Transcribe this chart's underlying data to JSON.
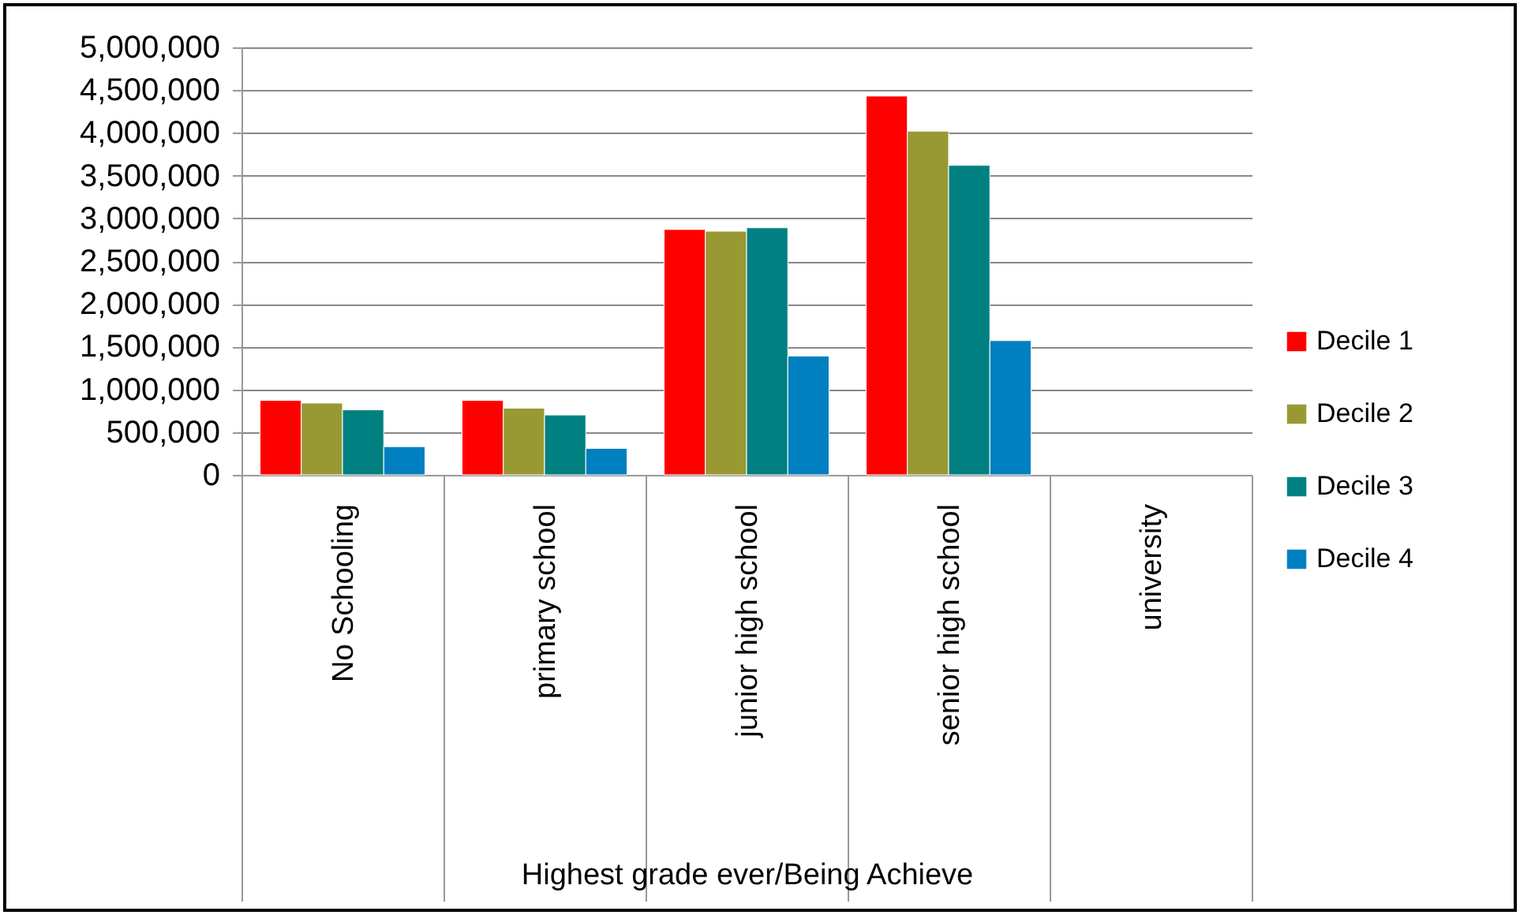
{
  "chart_data": {
    "type": "bar",
    "xlabel": "Highest grade ever/Being Achieve",
    "categories": [
      "No Schooling",
      "primary school",
      "junior high school",
      "senior high school",
      "university"
    ],
    "series": [
      {
        "name": "Decile 1",
        "color": "#ff0000",
        "values": [
          870000,
          870000,
          2870000,
          4430000,
          null
        ]
      },
      {
        "name": "Decile 2",
        "color": "#999933",
        "values": [
          840000,
          780000,
          2850000,
          4020000,
          null
        ]
      },
      {
        "name": "Decile 3",
        "color": "#008080",
        "values": [
          760000,
          700000,
          2890000,
          3620000,
          null
        ]
      },
      {
        "name": "Decile 4",
        "color": "#0080c0",
        "values": [
          330000,
          310000,
          1390000,
          1570000,
          null
        ]
      }
    ],
    "ylim": [
      0,
      5000000
    ],
    "yticks": [
      0,
      {
        "value": 500000,
        "label": "500,000"
      },
      {
        "value": 1000000,
        "label": "1,000,000"
      },
      {
        "value": 1500000,
        "label": "1,500,000"
      },
      {
        "value": 2000000,
        "label": "2,000,000"
      },
      {
        "value": 2500000,
        "label": "2,500,000"
      },
      {
        "value": 3000000,
        "label": "3,000,000"
      },
      {
        "value": 3500000,
        "label": "3,500,000"
      },
      {
        "value": 4000000,
        "label": "4,000,000"
      },
      {
        "value": 4500000,
        "label": "4,500,000"
      },
      {
        "value": 5000000,
        "label": "5,000,000"
      }
    ],
    "grid": "y",
    "legend": "right"
  }
}
